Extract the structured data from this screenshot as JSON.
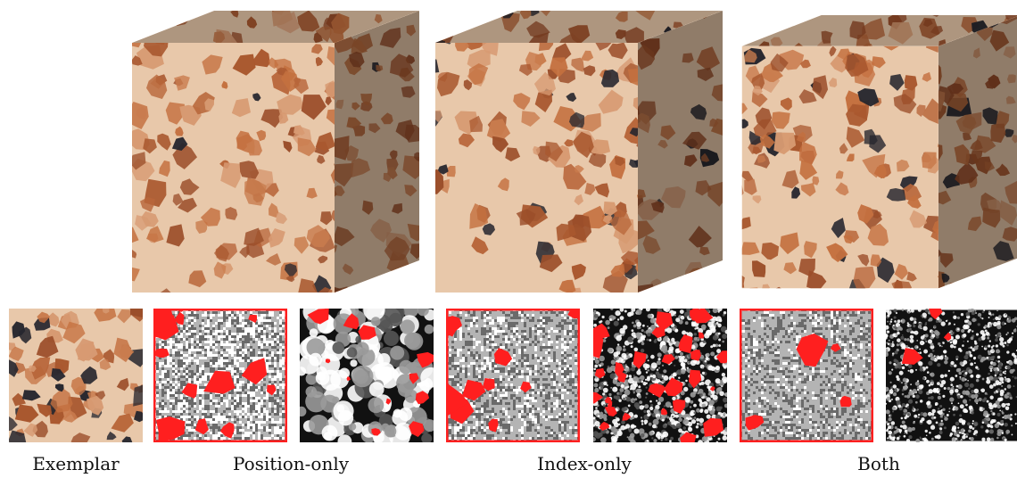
{
  "captions": {
    "exemplar": "Exemplar",
    "position_only": "Position-only",
    "index_only": "Index-only",
    "both": "Both"
  },
  "colors": {
    "stone_base": "#e8c8aa",
    "chip_brown": "#b8663a",
    "chip_black": "#26262e",
    "map_red": "#ff1f1f",
    "map_gray": "#8a8a8a",
    "map_white": "#ffffff",
    "map_black": "#111111"
  },
  "icons": {
    "cubes": [
      "textured-cube-icon",
      "textured-cube-icon",
      "textured-cube-icon"
    ],
    "panels": [
      "exemplar-texture-icon",
      "position-map-icon",
      "position-error-icon",
      "index-map-icon",
      "index-error-icon",
      "both-map-icon",
      "both-error-icon"
    ]
  }
}
